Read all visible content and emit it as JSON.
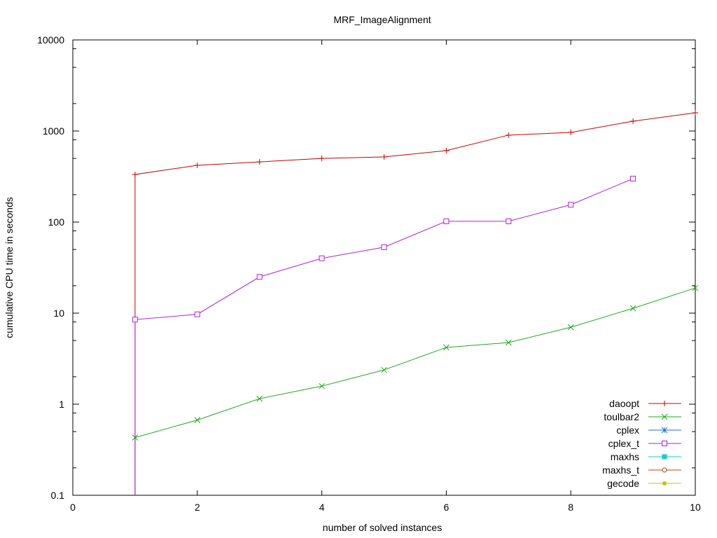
{
  "chart_data": {
    "type": "line",
    "title": "MRF_ImageAlignment",
    "xlabel": "number of solved instances",
    "ylabel": "cumulative CPU time in seconds",
    "xlim": [
      0,
      10
    ],
    "ylim": [
      0.1,
      10000
    ],
    "yscale": "log",
    "xticks": [
      0,
      2,
      4,
      6,
      8,
      10
    ],
    "yticks": [
      0.1,
      1,
      10,
      100,
      1000,
      10000
    ],
    "ytick_labels": [
      "0.1",
      "1",
      "10",
      "100",
      "1000",
      "10000"
    ],
    "grid": false,
    "legend_position": "lower right",
    "series": [
      {
        "name": "daoopt",
        "color": "#cc0000",
        "marker": "plus",
        "x": [
          1,
          2,
          3,
          4,
          5,
          6,
          7,
          8,
          9,
          10
        ],
        "values": [
          333,
          420,
          458,
          500,
          519,
          609,
          900,
          966,
          1282,
          1585
        ]
      },
      {
        "name": "toulbar2",
        "color": "#21a821",
        "marker": "cross",
        "x": [
          1,
          2,
          3,
          4,
          5,
          6,
          7,
          8,
          9,
          10
        ],
        "values": [
          0.43,
          0.67,
          1.15,
          1.58,
          2.38,
          4.2,
          4.75,
          7.0,
          11.3,
          18.9
        ]
      },
      {
        "name": "cplex",
        "color": "#1b6fd1",
        "marker": "star",
        "x": [],
        "values": []
      },
      {
        "name": "cplex_t",
        "color": "#b01fd8",
        "marker": "open-square",
        "x": [
          1,
          2,
          3,
          4,
          5,
          6,
          7,
          8,
          9
        ],
        "values": [
          8.5,
          9.7,
          25,
          40,
          53,
          102,
          102,
          155,
          300
        ]
      },
      {
        "name": "maxhs",
        "color": "#17c9d6",
        "marker": "filled-square",
        "x": [],
        "values": []
      },
      {
        "name": "maxhs_t",
        "color": "#b04a10",
        "marker": "open-circle",
        "x": [],
        "values": []
      },
      {
        "name": "gecode",
        "color": "#c8c400",
        "marker": "filled-circle",
        "x": [],
        "values": []
      }
    ]
  }
}
